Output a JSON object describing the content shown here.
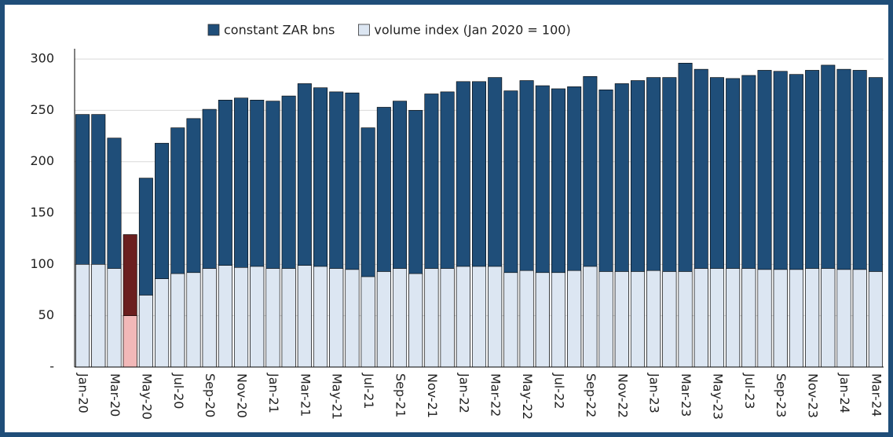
{
  "chart_data": {
    "type": "overlap-bar",
    "categories": [
      "Jan-20",
      null,
      "Mar-20",
      null,
      "May-20",
      null,
      "Jul-20",
      null,
      "Sep-20",
      null,
      "Nov-20",
      null,
      "Jan-21",
      null,
      "Mar-21",
      null,
      "May-21",
      null,
      "Jul-21",
      null,
      "Sep-21",
      null,
      "Nov-21",
      null,
      "Jan-22",
      null,
      "Mar-22",
      null,
      "May-22",
      null,
      "Jul-22",
      null,
      "Sep-22",
      null,
      "Nov-22",
      null,
      "Jan-23",
      null,
      "Mar-23",
      null,
      "May-23",
      null,
      "Jul-23",
      null,
      "Sep-23",
      null,
      "Nov-23",
      null,
      "Jan-24",
      null,
      "Mar-24"
    ],
    "series": [
      {
        "name": "constant ZAR bns",
        "color": "#1f4e79",
        "colors": [
          "#1f4e79",
          "#1f4e79",
          "#1f4e79",
          "#6b1f1f",
          "#1f4e79",
          "#1f4e79",
          "#1f4e79",
          "#1f4e79",
          "#1f4e79",
          "#1f4e79",
          "#1f4e79",
          "#1f4e79",
          "#1f4e79",
          "#1f4e79",
          "#1f4e79",
          "#1f4e79",
          "#1f4e79",
          "#1f4e79",
          "#1f4e79",
          "#1f4e79",
          "#1f4e79",
          "#1f4e79",
          "#1f4e79",
          "#1f4e79",
          "#1f4e79",
          "#1f4e79",
          "#1f4e79",
          "#1f4e79",
          "#1f4e79",
          "#1f4e79",
          "#1f4e79",
          "#1f4e79",
          "#1f4e79",
          "#1f4e79",
          "#1f4e79",
          "#1f4e79",
          "#1f4e79",
          "#1f4e79",
          "#1f4e79",
          "#1f4e79",
          "#1f4e79",
          "#1f4e79",
          "#1f4e79",
          "#1f4e79",
          "#1f4e79",
          "#1f4e79",
          "#1f4e79",
          "#1f4e79",
          "#1f4e79",
          "#1f4e79",
          "#1f4e79"
        ],
        "values": [
          246,
          246,
          223,
          129,
          184,
          218,
          233,
          242,
          251,
          260,
          262,
          260,
          259,
          264,
          276,
          272,
          268,
          267,
          233,
          253,
          259,
          250,
          266,
          268,
          278,
          278,
          282,
          269,
          279,
          274,
          271,
          273,
          283,
          270,
          276,
          279,
          282,
          282,
          296,
          290,
          282,
          281,
          284,
          289,
          288,
          285,
          289,
          294,
          290,
          289,
          282
        ]
      },
      {
        "name": "volume index (Jan 2020 = 100)",
        "color": "#dce6f2",
        "colors": [
          "#dce6f2",
          "#dce6f2",
          "#dce6f2",
          "#f2b8b8",
          "#dce6f2",
          "#dce6f2",
          "#dce6f2",
          "#dce6f2",
          "#dce6f2",
          "#dce6f2",
          "#dce6f2",
          "#dce6f2",
          "#dce6f2",
          "#dce6f2",
          "#dce6f2",
          "#dce6f2",
          "#dce6f2",
          "#dce6f2",
          "#dce6f2",
          "#dce6f2",
          "#dce6f2",
          "#dce6f2",
          "#dce6f2",
          "#dce6f2",
          "#dce6f2",
          "#dce6f2",
          "#dce6f2",
          "#dce6f2",
          "#dce6f2",
          "#dce6f2",
          "#dce6f2",
          "#dce6f2",
          "#dce6f2",
          "#dce6f2",
          "#dce6f2",
          "#dce6f2",
          "#dce6f2",
          "#dce6f2",
          "#dce6f2",
          "#dce6f2",
          "#dce6f2",
          "#dce6f2",
          "#dce6f2",
          "#dce6f2",
          "#dce6f2",
          "#dce6f2",
          "#dce6f2",
          "#dce6f2",
          "#dce6f2",
          "#dce6f2",
          "#dce6f2"
        ],
        "values": [
          100,
          100,
          96,
          50,
          70,
          86,
          91,
          92,
          96,
          99,
          97,
          98,
          96,
          96,
          99,
          98,
          96,
          95,
          88,
          93,
          96,
          91,
          96,
          96,
          98,
          98,
          98,
          92,
          94,
          92,
          92,
          94,
          98,
          93,
          93,
          93,
          94,
          93,
          93,
          96,
          96,
          96,
          96,
          95,
          95,
          95,
          96,
          96,
          95,
          95,
          93
        ]
      }
    ],
    "ylim": [
      0,
      310
    ],
    "yticks": [
      {
        "value": 0,
        "label": "-"
      },
      50,
      100,
      150,
      200,
      250,
      300
    ],
    "grid": true,
    "legend": "top"
  }
}
